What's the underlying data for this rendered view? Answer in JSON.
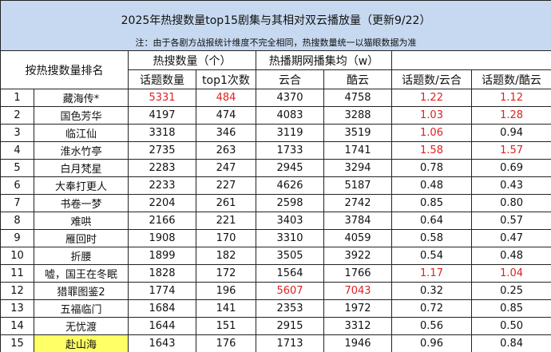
{
  "header": {
    "title": "2025年热搜数量top15剧集与其相对双云播放量（更新9/22）",
    "note": "注：由于各剧方战报统计维度不完全相同，热搜数量统一以猫眼数据为准"
  },
  "table": {
    "rank_header": "按热搜数量排名",
    "group_headers": [
      "热搜数量（个）",
      "热播期网播集均（w）"
    ],
    "sub_headers": [
      "话题数量",
      "top1次数",
      "云合",
      "酷云",
      "话题数/云合",
      "话题数/酷云"
    ],
    "rows": [
      [
        "1",
        "藏海传*",
        {
          "text": "5331",
          "color": "#e02020"
        },
        {
          "text": "484",
          "color": "#e02020"
        },
        "4370",
        "4758",
        {
          "text": "1.22",
          "color": "#e02020"
        },
        {
          "text": "1.12",
          "color": "#e02020"
        }
      ],
      [
        "2",
        "国色芳华",
        "4197",
        "474",
        "4083",
        "3288",
        {
          "text": "1.03",
          "color": "#e02020"
        },
        {
          "text": "1.28",
          "color": "#e02020"
        }
      ],
      [
        "3",
        "临江仙",
        "3318",
        "346",
        "3119",
        "3519",
        {
          "text": "1.06",
          "color": "#e02020"
        },
        "0.94"
      ],
      [
        "4",
        "淮水竹亭",
        "2735",
        "263",
        "1733",
        "1741",
        {
          "text": "1.58",
          "color": "#e02020"
        },
        {
          "text": "1.57",
          "color": "#e02020"
        }
      ],
      [
        "5",
        "白月梵星",
        "2283",
        "247",
        "2945",
        "3294",
        "0.78",
        "0.69"
      ],
      [
        "6",
        "大奉打更人",
        "2233",
        "227",
        "4626",
        "5187",
        "0.48",
        "0.43"
      ],
      [
        "7",
        "书卷一梦",
        "2204",
        "261",
        "2598",
        "2742",
        "0.85",
        "0.80"
      ],
      [
        "8",
        "难哄",
        "2166",
        "221",
        "3403",
        "3784",
        "0.64",
        "0.57"
      ],
      [
        "9",
        "雁回时",
        "1908",
        "170",
        "3310",
        "4059",
        "0.58",
        "0.47"
      ],
      [
        "10",
        "折腰",
        "1899",
        "182",
        "3505",
        "3922",
        "0.54",
        "0.48"
      ],
      [
        "11",
        "嘘，国王在冬眠",
        "1828",
        "172",
        "1564",
        "1766",
        {
          "text": "1.17",
          "color": "#e02020"
        },
        {
          "text": "1.04",
          "color": "#e02020"
        }
      ],
      [
        "12",
        "猎罪图鉴2",
        "1774",
        "196",
        {
          "text": "5607",
          "color": "#e02020"
        },
        {
          "text": "7043",
          "color": "#e02020"
        },
        "0.32",
        "0.25"
      ],
      [
        "13",
        "五福临门",
        "1684",
        "141",
        "2353",
        "1972",
        "0.72",
        "0.85"
      ],
      [
        "14",
        "无忧渡",
        "1644",
        "151",
        "2915",
        "3312",
        "0.56",
        "0.50"
      ],
      [
        "15",
        {
          "text": "赴山海",
          "background": "#ffff66"
        },
        "1643",
        "176",
        "1713",
        "1946",
        "0.96",
        "0.84"
      ]
    ]
  }
}
